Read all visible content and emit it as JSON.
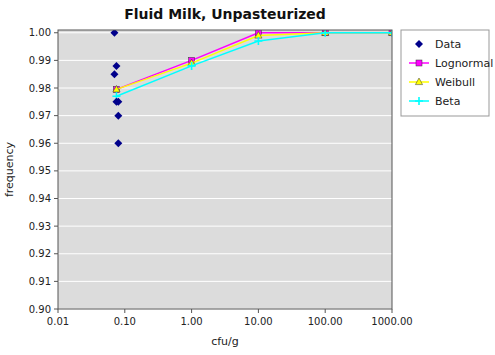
{
  "chart_data": {
    "type": "line",
    "title": "Fluid Milk, Unpasteurized",
    "x_label": "cfu/g",
    "y_label": "frequency",
    "log": "x",
    "grid": "y",
    "legend": "right",
    "xlim": [
      0.01,
      1000.0
    ],
    "ylim": [
      0.9,
      1.001
    ],
    "xticks": [
      0.01,
      {
        "value": 0.1,
        "label": "0.10"
      },
      {
        "value": 1.0,
        "label": "1.00"
      },
      {
        "value": 10.0,
        "label": "10.00"
      },
      {
        "value": 100.0,
        "label": "100.00"
      },
      {
        "value": 1000.0,
        "label": "1000.00"
      }
    ],
    "yticks": [
      {
        "value": 0.9,
        "label": "0.90"
      },
      0.91,
      0.92,
      0.93,
      0.94,
      0.95,
      0.96,
      0.97,
      0.98,
      0.99,
      {
        "value": 1.0,
        "label": "1.00"
      }
    ],
    "series": [
      {
        "name": "Data",
        "type": "scatter",
        "marker": "diamond",
        "line_style": "none",
        "color": "#00008B",
        "x": [
          0.07,
          0.07,
          0.075,
          0.075,
          0.08,
          0.08,
          0.08
        ],
        "values": [
          1.0,
          0.985,
          0.988,
          0.975,
          0.975,
          0.97,
          0.96
        ]
      },
      {
        "name": "Lognormal",
        "type": "line",
        "marker": "square",
        "line_style": "solid",
        "color": "#FF00FF",
        "x": [
          0.075,
          1.0,
          10.0,
          100.0,
          1000.0
        ],
        "values": [
          0.9795,
          0.99,
          1.0,
          1.0,
          1.0
        ]
      },
      {
        "name": "Weibull",
        "type": "line",
        "marker": "triangle",
        "line_style": "solid",
        "color": "#FFFF00",
        "x": [
          0.075,
          1.0,
          10.0,
          100.0,
          1000.0
        ],
        "values": [
          0.9795,
          0.989,
          0.999,
          1.0,
          1.0
        ]
      },
      {
        "name": "Beta",
        "type": "line",
        "marker": "plus",
        "line_style": "solid",
        "color": "#00FFFF",
        "x": [
          0.075,
          1.0,
          10.0,
          100.0,
          1000.0
        ],
        "values": [
          0.977,
          0.988,
          0.997,
          1.0,
          1.0
        ]
      }
    ]
  }
}
